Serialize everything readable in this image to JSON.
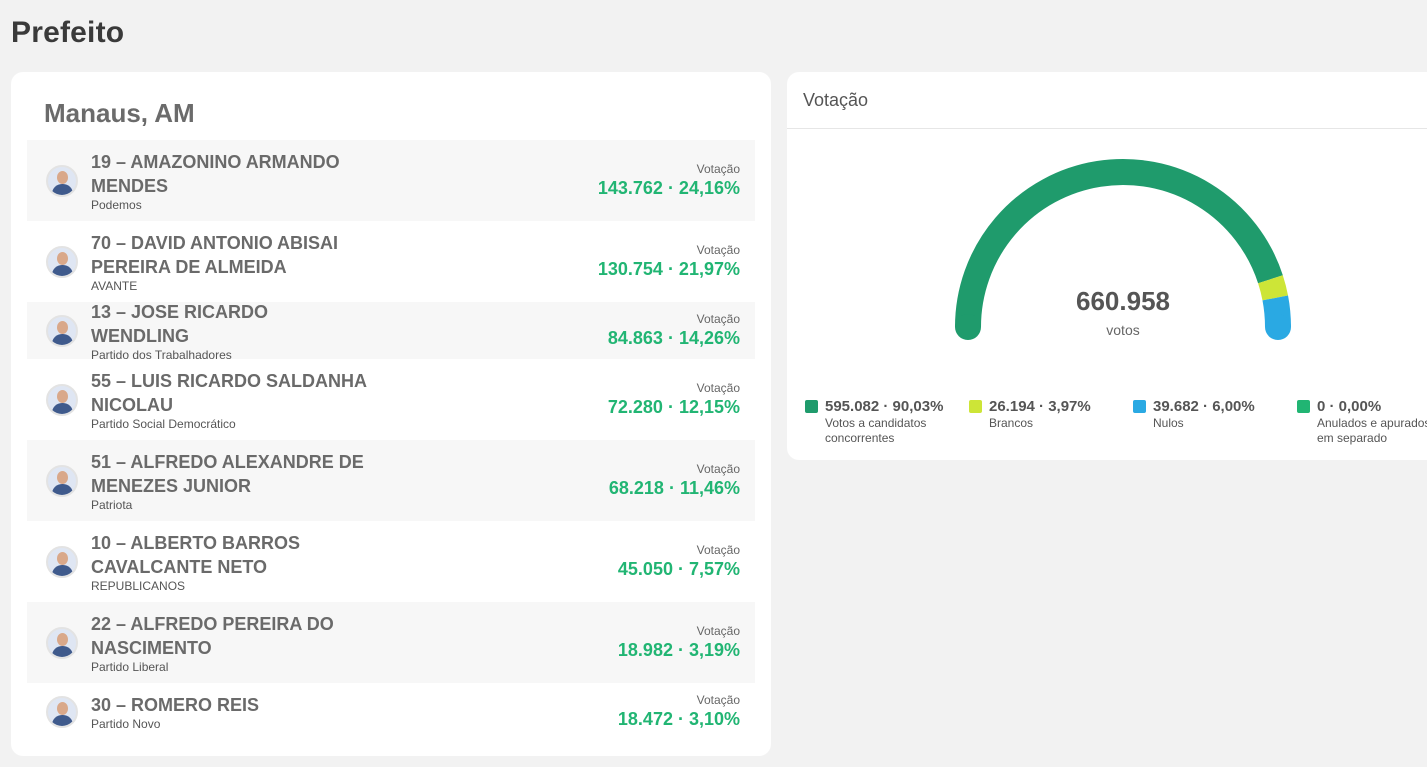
{
  "page": {
    "title": "Prefeito"
  },
  "results": {
    "city": "Manaus, AM",
    "votes_label": "Votação",
    "candidates": [
      {
        "name": "19 – AMAZONINO ARMANDO MENDES",
        "party": "Podemos",
        "votes": "143.762 · 24,16%"
      },
      {
        "name": "70 – DAVID ANTONIO ABISAI PEREIRA DE ALMEIDA",
        "party": "AVANTE",
        "votes": "130.754 · 21,97%"
      },
      {
        "name": "13 – JOSE RICARDO WENDLING",
        "party": "Partido dos Trabalhadores",
        "votes": "84.863 · 14,26%"
      },
      {
        "name": "55 – LUIS RICARDO SALDANHA NICOLAU",
        "party": "Partido Social Democrático",
        "votes": "72.280 · 12,15%"
      },
      {
        "name": "51 – ALFREDO ALEXANDRE DE MENEZES JUNIOR",
        "party": "Patriota",
        "votes": "68.218 · 11,46%"
      },
      {
        "name": "10 – ALBERTO BARROS CAVALCANTE NETO",
        "party": "REPUBLICANOS",
        "votes": "45.050 · 7,57%"
      },
      {
        "name": "22 – ALFREDO PEREIRA DO NASCIMENTO",
        "party": "Partido Liberal",
        "votes": "18.982 · 3,19%"
      },
      {
        "name": "30 – ROMERO REIS",
        "party": "Partido Novo",
        "votes": "18.472 · 3,10%"
      }
    ]
  },
  "turnout": {
    "header": "Votação",
    "total": "660.958",
    "total_unit": "votos",
    "segments": [
      {
        "value": "595.082 · 90,03%",
        "label": "Votos a candidatos concorrentes",
        "percent": 90.03,
        "color": "#1f9b6c"
      },
      {
        "value": "26.194 · 3,97%",
        "label": "Brancos",
        "percent": 3.97,
        "color": "#cde537"
      },
      {
        "value": "39.682 · 6,00%",
        "label": "Nulos",
        "percent": 6.0,
        "color": "#2aa9e3"
      },
      {
        "value": "0 · 0,00%",
        "label": "Anulados e apurados em separado",
        "percent": 0.0,
        "color": "#21b573"
      }
    ]
  }
}
